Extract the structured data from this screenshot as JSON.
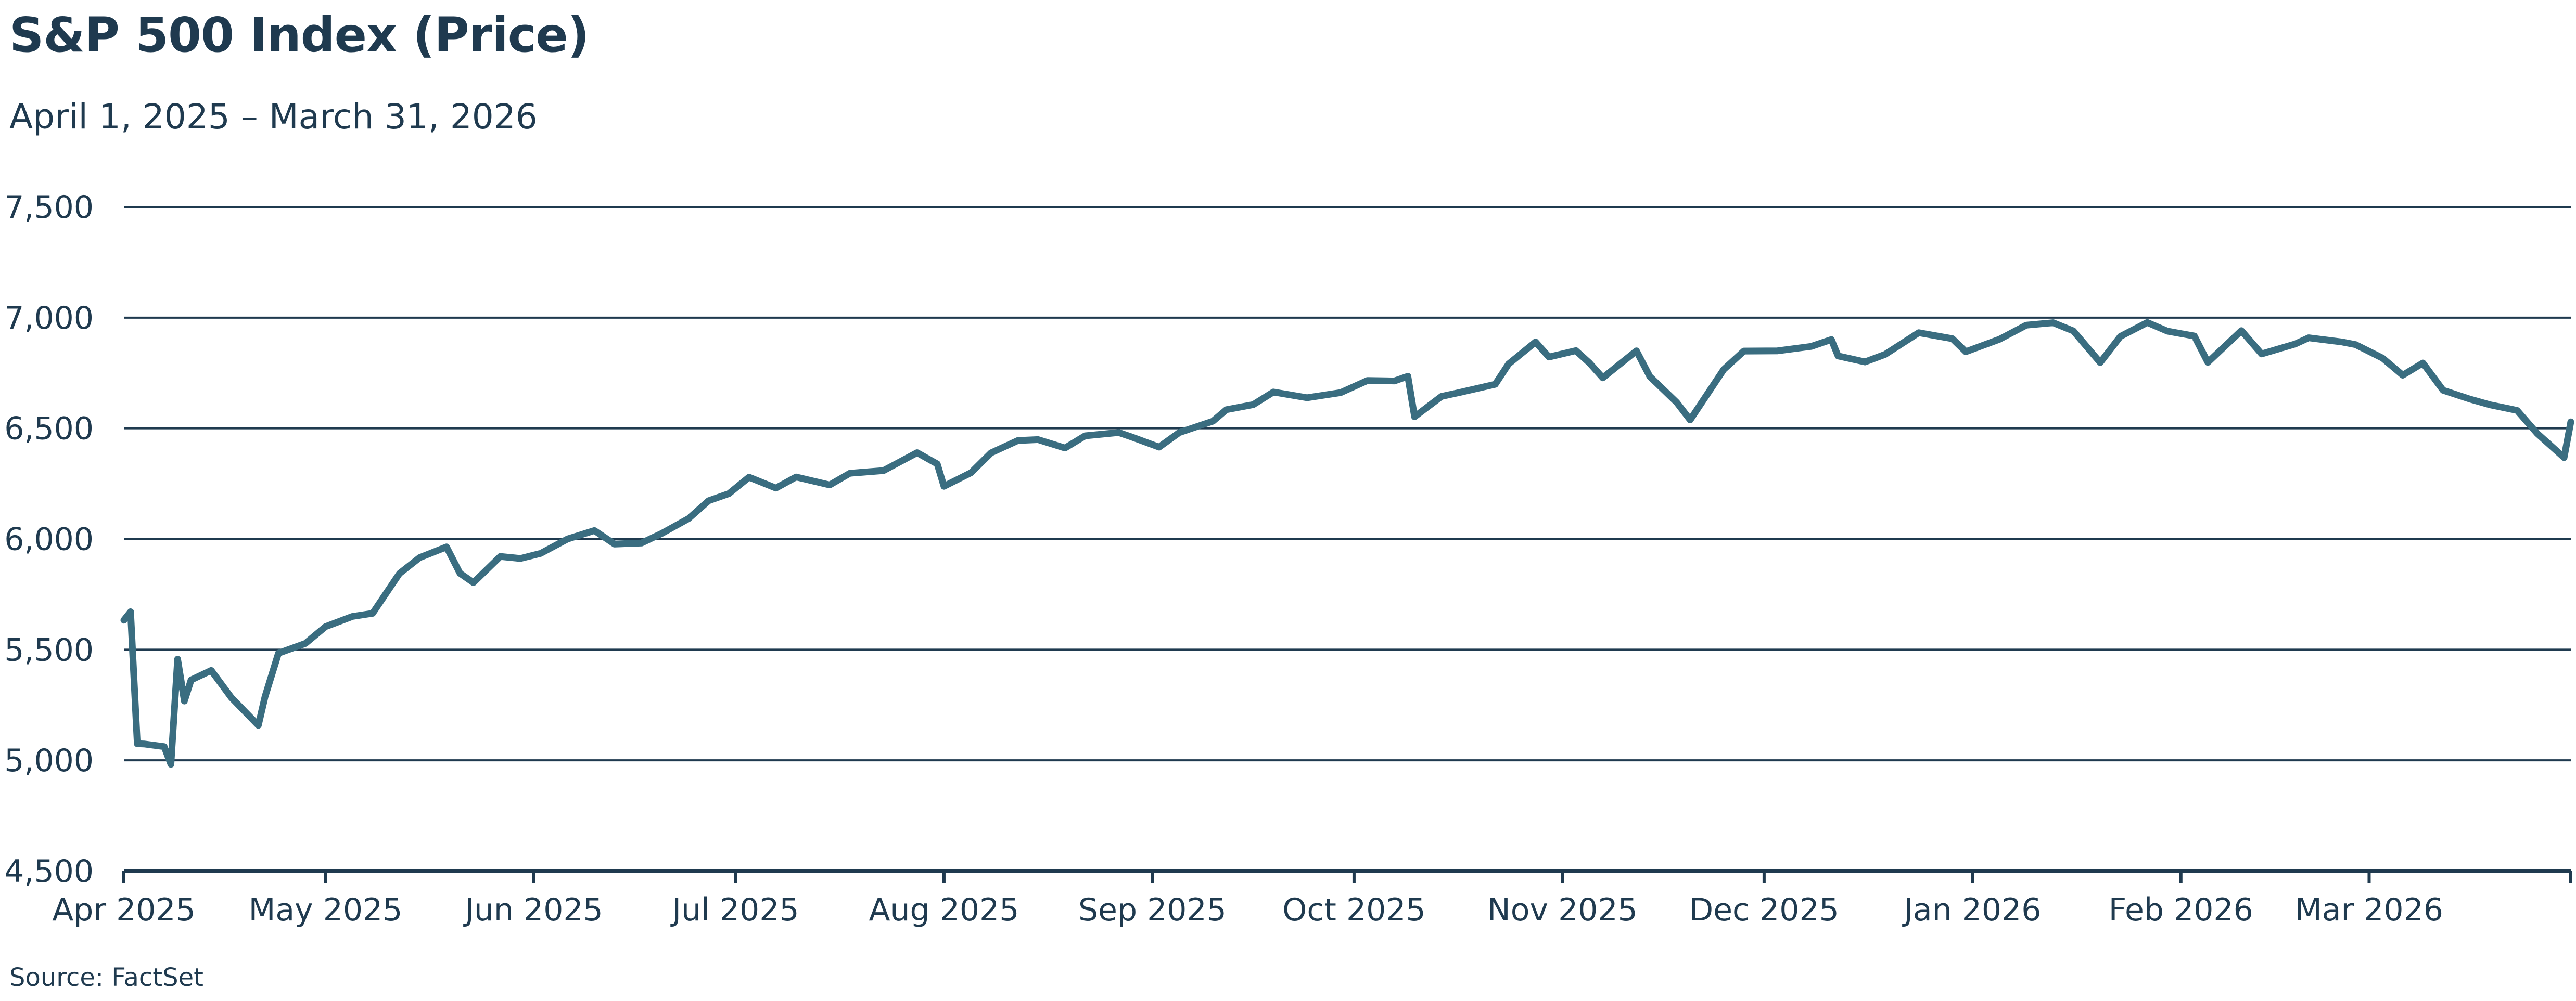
{
  "title": "S&P 500 Index (Price)",
  "subtitle": "April 1, 2025 – March 31, 2026",
  "source": "Source: FactSet",
  "colors": {
    "line": "#3a6d80",
    "grid": "#1f3a4f",
    "text": "#1f3a4f"
  },
  "chart_data": {
    "type": "line",
    "title": "S&P 500 Index (Price)",
    "subtitle": "April 1, 2025 – March 31, 2026",
    "xlabel": "",
    "ylabel": "",
    "ylim": [
      4500,
      7500
    ],
    "xlim": [
      "2025-04-01",
      "2026-03-31"
    ],
    "y_ticks": [
      4500,
      5000,
      5500,
      6000,
      6500,
      7000,
      7500
    ],
    "y_tick_labels": [
      "4,500",
      "5,000",
      "5,500",
      "6,000",
      "6,500",
      "7,000",
      "7,500"
    ],
    "x_ticks": [
      "2025-04-01",
      "2025-05-01",
      "2025-06-01",
      "2025-07-01",
      "2025-08-01",
      "2025-09-01",
      "2025-10-01",
      "2025-11-01",
      "2025-12-01",
      "2026-01-01",
      "2026-02-01",
      "2026-03-01"
    ],
    "x_tick_labels": [
      "Apr 2025",
      "May 2025",
      "Jun 2025",
      "Jul 2025",
      "Aug 2025",
      "Sep 2025",
      "Oct 2025",
      "Nov 2025",
      "Dec 2025",
      "Jan 2026",
      "Feb 2026",
      "Mar 2026"
    ],
    "grid": "horizontal",
    "legend": "none",
    "series": [
      {
        "x": [
          "2025-04-01",
          "2025-04-02",
          "2025-04-03",
          "2025-04-04",
          "2025-04-07",
          "2025-04-08",
          "2025-04-09",
          "2025-04-10",
          "2025-04-11",
          "2025-04-14",
          "2025-04-17",
          "2025-04-21",
          "2025-04-22",
          "2025-04-24",
          "2025-04-28",
          "2025-05-01",
          "2025-05-05",
          "2025-05-08",
          "2025-05-12",
          "2025-05-15",
          "2025-05-19",
          "2025-05-21",
          "2025-05-23",
          "2025-05-27",
          "2025-05-30",
          "2025-06-02",
          "2025-06-06",
          "2025-06-10",
          "2025-06-13",
          "2025-06-17",
          "2025-06-20",
          "2025-06-24",
          "2025-06-27",
          "2025-06-30",
          "2025-07-03",
          "2025-07-07",
          "2025-07-10",
          "2025-07-15",
          "2025-07-18",
          "2025-07-23",
          "2025-07-28",
          "2025-07-31",
          "2025-08-01",
          "2025-08-05",
          "2025-08-08",
          "2025-08-12",
          "2025-08-15",
          "2025-08-19",
          "2025-08-22",
          "2025-08-27",
          "2025-08-29",
          "2025-09-02",
          "2025-09-05",
          "2025-09-10",
          "2025-09-12",
          "2025-09-16",
          "2025-09-19",
          "2025-09-24",
          "2025-09-29",
          "2025-10-03",
          "2025-10-07",
          "2025-10-09",
          "2025-10-10",
          "2025-10-14",
          "2025-10-17",
          "2025-10-22",
          "2025-10-24",
          "2025-10-28",
          "2025-10-30",
          "2025-11-03",
          "2025-11-05",
          "2025-11-07",
          "2025-11-12",
          "2025-11-14",
          "2025-11-18",
          "2025-11-20",
          "2025-11-25",
          "2025-11-28",
          "2025-12-03",
          "2025-12-08",
          "2025-12-11",
          "2025-12-12",
          "2025-12-16",
          "2025-12-19",
          "2025-12-24",
          "2025-12-29",
          "2025-12-31",
          "2026-01-05",
          "2026-01-09",
          "2026-01-13",
          "2026-01-16",
          "2026-01-20",
          "2026-01-23",
          "2026-01-27",
          "2026-01-30",
          "2026-02-03",
          "2026-02-05",
          "2026-02-10",
          "2026-02-13",
          "2026-02-18",
          "2026-02-20",
          "2026-02-25",
          "2026-02-27",
          "2026-03-03",
          "2026-03-06",
          "2026-03-09",
          "2026-03-12",
          "2026-03-16",
          "2026-03-19",
          "2026-03-23",
          "2026-03-26",
          "2026-03-30",
          "2026-03-31"
        ],
        "values": [
          5633,
          5671,
          5075,
          5074,
          5062,
          4982,
          5457,
          5268,
          5363,
          5406,
          5283,
          5158,
          5288,
          5484,
          5528,
          5604,
          5650,
          5664,
          5844,
          5916,
          5964,
          5845,
          5803,
          5921,
          5912,
          5935,
          6000,
          6038,
          5977,
          5982,
          6025,
          6092,
          6173,
          6205,
          6279,
          6230,
          6280,
          6244,
          6297,
          6309,
          6390,
          6339,
          6238,
          6299,
          6389,
          6445,
          6449,
          6411,
          6466,
          6481,
          6460,
          6415,
          6481,
          6532,
          6584,
          6607,
          6664,
          6638,
          6661,
          6716,
          6714,
          6735,
          6552,
          6644,
          6664,
          6699,
          6791,
          6890,
          6822,
          6851,
          6796,
          6728,
          6850,
          6734,
          6617,
          6538,
          6766,
          6849,
          6850,
          6870,
          6901,
          6827,
          6800,
          6834,
          6932,
          6905,
          6846,
          6902,
          6966,
          6977,
          6940,
          6797,
          6915,
          6978,
          6939,
          6917,
          6798,
          6941,
          6836,
          6881,
          6909,
          6890,
          6878,
          6817,
          6740,
          6795,
          6672,
          6632,
          6606,
          6581,
          6477,
          6368,
          6529
        ]
      }
    ]
  }
}
